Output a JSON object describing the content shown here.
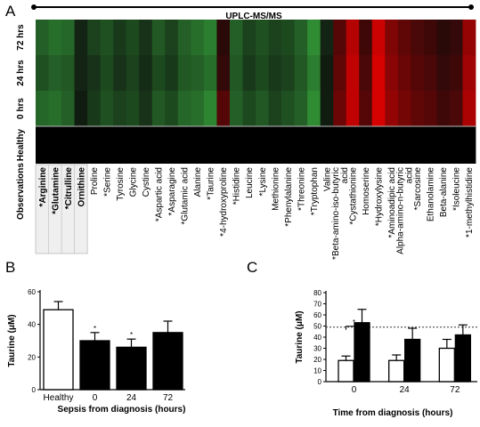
{
  "chart_data": [
    {
      "type": "heatmap",
      "panel": "A",
      "title": "UPLC-MS/MS",
      "rows": [
        "72 hrs",
        "24 hrs",
        "0 hrs",
        "Healthy"
      ],
      "row_axis_label": "Observations",
      "columns": [
        "*Arginine",
        "*Glutamine",
        "*Citrulline",
        "Ornithine",
        "Proline",
        "*Serine",
        "Tyrosine",
        "Glycine",
        "Cystine",
        "*Aspartic acid",
        "*Asparagine",
        "*Glutamic acid",
        "Alanine",
        "*Taurine",
        "*4-hydroxyproline",
        "*Histidine",
        "Leucine",
        "*Lysine",
        "Methionine",
        "*Phenylalanine",
        "*Threonine",
        "*Tryptophan",
        "Valine",
        "*Beta-amino-iso-butyric acid",
        "*Cystathionine",
        "Homoserine",
        "*Hydroxylysine",
        "*Aminoadipic acid",
        "Alpha-amino-n-butyric acid",
        "*Sarcosine",
        "Ethanolamine",
        "Beta-alanine",
        "*Isoleucine",
        "*1-methylhistidine"
      ],
      "highlighted_columns": [
        "*Arginine",
        "*Glutamine",
        "*Citrulline",
        "Ornithine"
      ],
      "values": [
        [
          -0.5,
          -0.6,
          -0.55,
          -0.1,
          -0.3,
          -0.4,
          -0.25,
          -0.35,
          -0.2,
          -0.45,
          -0.3,
          -0.5,
          -0.6,
          -0.7,
          0.1,
          -0.5,
          -0.3,
          -0.4,
          -0.3,
          -0.35,
          -0.5,
          -0.8,
          -0.1,
          0.3,
          0.75,
          0.2,
          0.85,
          0.5,
          0.35,
          0.25,
          0.2,
          0.1,
          0.15,
          0.6
        ],
        [
          -0.4,
          -0.5,
          -0.45,
          -0.1,
          -0.2,
          -0.35,
          -0.2,
          -0.3,
          -0.15,
          -0.35,
          -0.25,
          -0.45,
          -0.5,
          -0.6,
          0.15,
          -0.45,
          -0.25,
          -0.35,
          -0.25,
          -0.3,
          -0.45,
          -0.7,
          -0.05,
          0.35,
          0.8,
          0.25,
          0.9,
          0.55,
          0.4,
          0.3,
          0.25,
          0.15,
          0.2,
          0.65
        ],
        [
          -0.55,
          -0.6,
          -0.5,
          -0.05,
          -0.25,
          -0.4,
          -0.3,
          -0.35,
          -0.2,
          -0.45,
          -0.35,
          -0.55,
          -0.6,
          -0.75,
          0.3,
          -0.5,
          -0.35,
          -0.45,
          -0.3,
          -0.4,
          -0.5,
          -0.8,
          -0.05,
          0.4,
          0.8,
          0.3,
          0.9,
          0.6,
          0.45,
          0.35,
          0.3,
          0.2,
          0.25,
          0.7
        ],
        [
          0,
          0,
          0,
          0,
          0,
          0,
          0,
          0,
          0,
          0,
          0,
          0,
          0,
          0,
          0,
          0,
          0,
          0,
          0,
          0,
          0,
          0,
          0,
          0,
          0,
          0,
          0,
          0,
          0,
          0,
          0,
          0,
          0,
          0
        ]
      ]
    },
    {
      "type": "bar",
      "panel": "B",
      "categories": [
        "Healthy",
        "0",
        "24",
        "72"
      ],
      "values": [
        49,
        30,
        26,
        35
      ],
      "errors": [
        5,
        5,
        5,
        7
      ],
      "fills": [
        "#ffffff",
        "#000000",
        "#000000",
        "#000000"
      ],
      "significance": [
        "",
        "*",
        "*",
        ""
      ],
      "ylabel": "Taurine (μM)",
      "xlabel": "Sepsis from diagnosis (hours)",
      "ylim": [
        0,
        60
      ],
      "yticks": [
        0,
        20,
        40,
        60
      ]
    },
    {
      "type": "bar",
      "panel": "C",
      "categories": [
        "0",
        "24",
        "72"
      ],
      "series": [
        {
          "values": [
            19,
            19,
            30
          ],
          "errors": [
            4,
            5,
            8
          ],
          "fill": "#ffffff"
        },
        {
          "values": [
            53,
            38,
            42
          ],
          "errors": [
            12,
            10,
            9
          ],
          "fill": "#000000"
        }
      ],
      "reference_line": 49,
      "significance_bracket": {
        "category": "0",
        "label": "*"
      },
      "ylabel": "Taurine (μM)",
      "xlabel": "Time from diagnosis (hours)",
      "ylim": [
        0,
        80
      ],
      "yticks": [
        0,
        10,
        20,
        30,
        40,
        50,
        60,
        70,
        80
      ]
    }
  ]
}
